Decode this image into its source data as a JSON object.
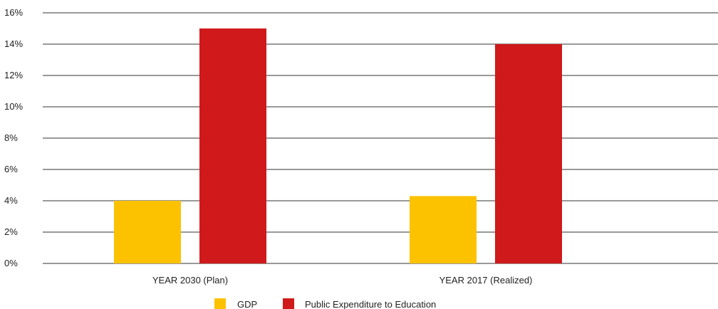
{
  "chart_data": {
    "type": "bar",
    "title": "",
    "xlabel": "",
    "ylabel": "",
    "ylim": [
      0,
      16
    ],
    "y_ticks": [
      "0%",
      "2%",
      "4%",
      "6%",
      "8%",
      "10%",
      "12%",
      "14%",
      "16%"
    ],
    "y_tick_values": [
      0,
      2,
      4,
      6,
      8,
      10,
      12,
      14,
      16
    ],
    "grid": "horizontal",
    "legend_position": "bottom",
    "categories": [
      "YEAR 2030 (Plan)",
      "YEAR 2017 (Realized)"
    ],
    "series": [
      {
        "name": "GDP",
        "color": "#FCC200",
        "values": [
          4.0,
          4.3
        ]
      },
      {
        "name": "Public Expenditure to Education",
        "color": "#D0191A",
        "values": [
          15.0,
          14.0
        ]
      }
    ]
  }
}
